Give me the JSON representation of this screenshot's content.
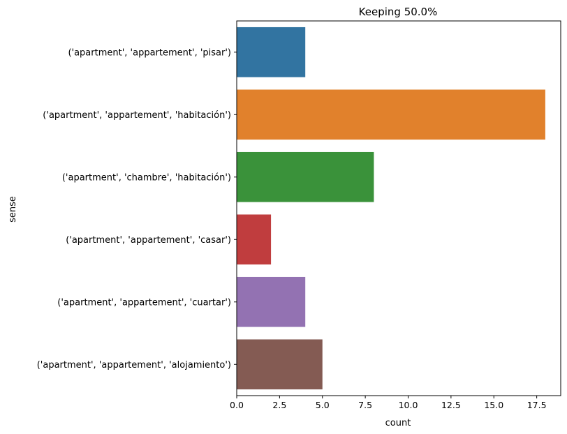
{
  "chart_data": {
    "type": "bar",
    "orientation": "horizontal",
    "title": "Keeping 50.0%",
    "xlabel": "count",
    "ylabel": "sense",
    "categories": [
      "('apartment', 'appartement', 'pisar')",
      "('apartment', 'appartement', 'habitación')",
      "('apartment', 'chambre', 'habitación')",
      "('apartment', 'appartement', 'casar')",
      "('apartment', 'appartement', 'cuartar')",
      "('apartment', 'appartement', 'alojamiento')"
    ],
    "values": [
      4,
      18,
      8,
      2,
      4,
      5
    ],
    "colors": [
      "#3274a1",
      "#e1812c",
      "#3a923a",
      "#c03d3e",
      "#9372b2",
      "#845b53"
    ],
    "xlim": [
      0,
      18.9
    ],
    "xticks": [
      0,
      2.5,
      5,
      7.5,
      10,
      12.5,
      15,
      17.5
    ],
    "xtick_labels": [
      "0.0",
      "2.5",
      "5.0",
      "7.5",
      "10.0",
      "12.5",
      "15.0",
      "17.5"
    ],
    "grid": false,
    "legend": "none"
  }
}
